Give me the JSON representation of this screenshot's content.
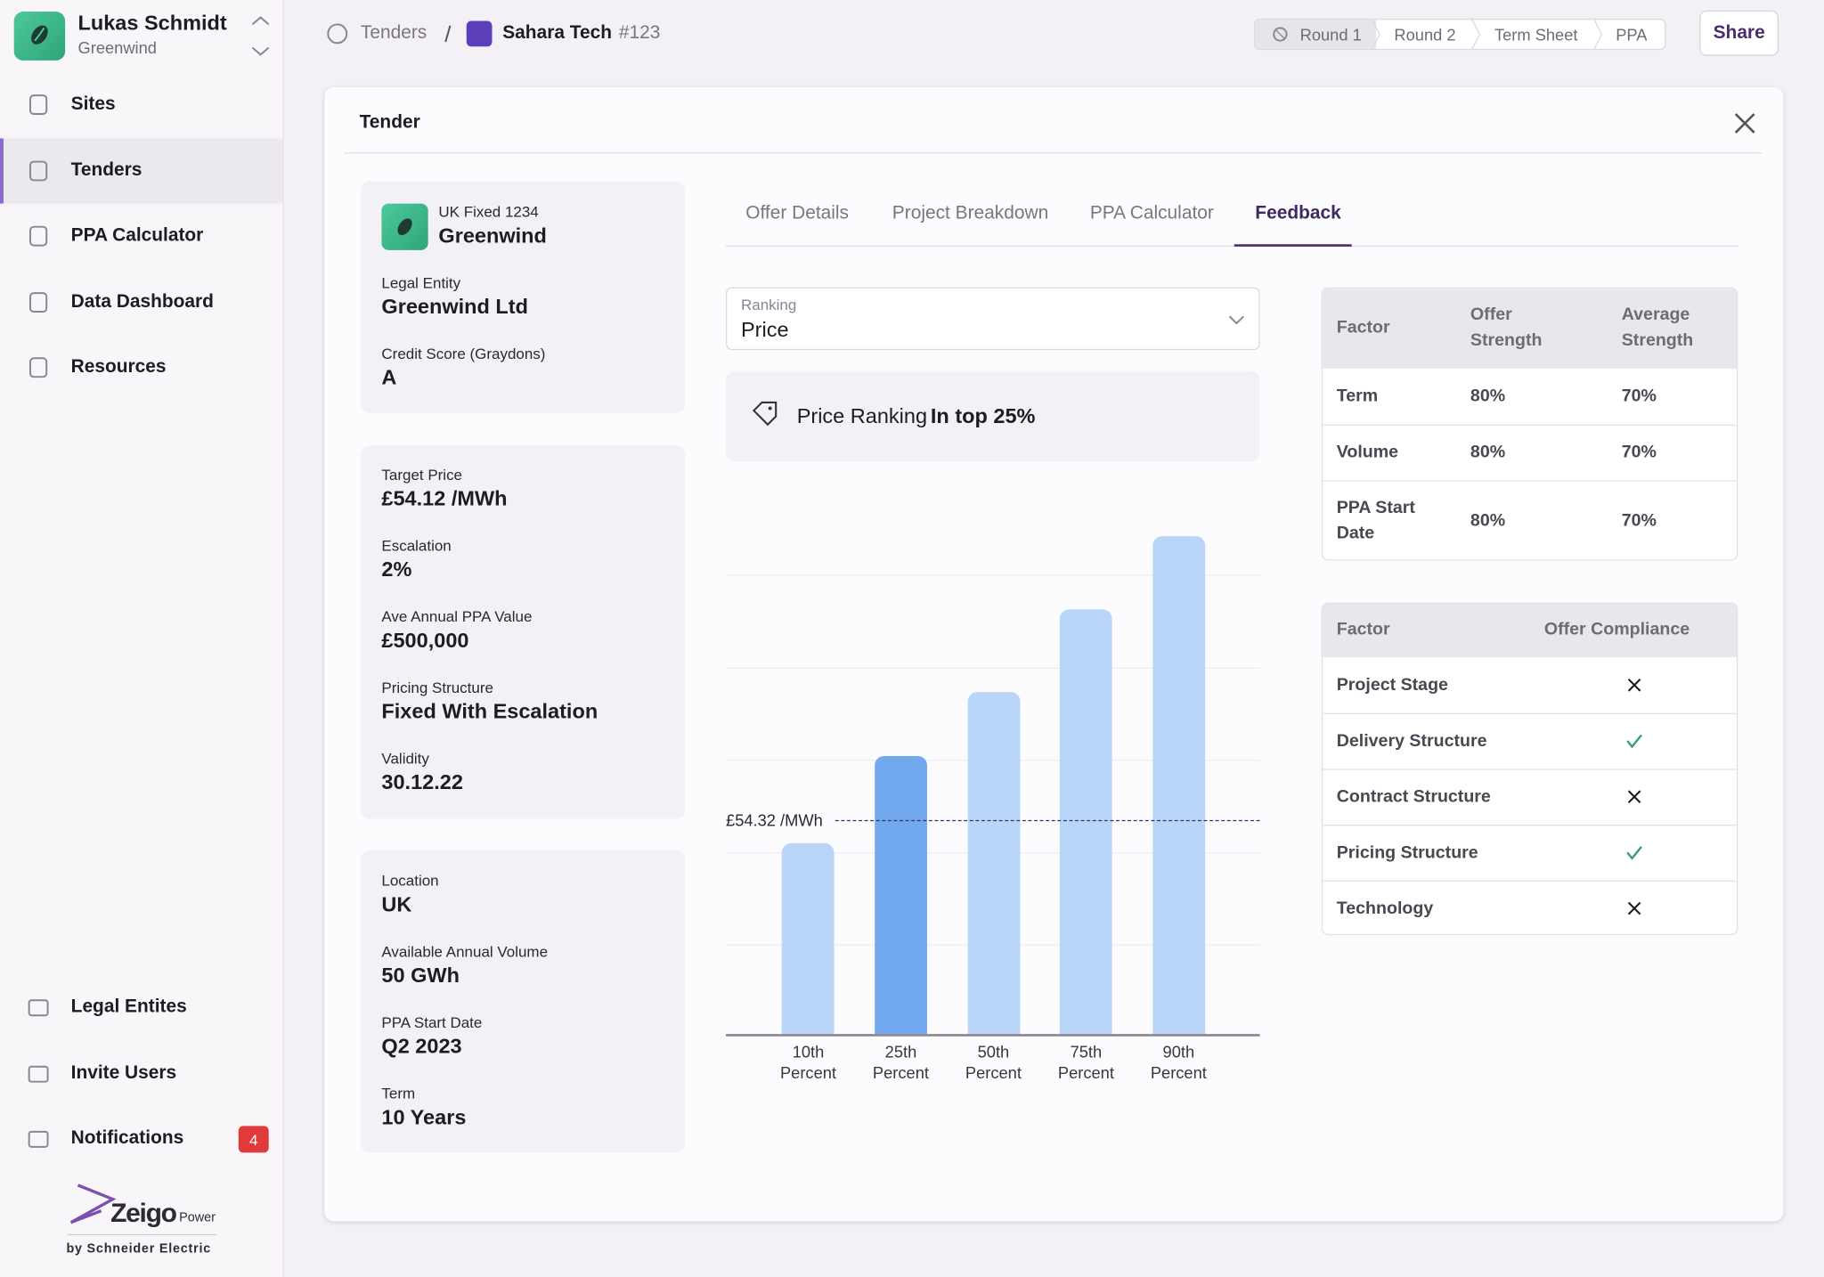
{
  "sidebar": {
    "user": {
      "name": "Lukas Schmidt",
      "org": "Greenwind"
    },
    "nav": [
      "Sites",
      "Tenders",
      "PPA Calculator",
      "Data Dashboard",
      "Resources"
    ],
    "active_nav": 1,
    "bottom_nav": [
      "Legal Entites",
      "Invite Users",
      "Notifications"
    ],
    "notification_count": 4,
    "brand": {
      "name": "Zeigo",
      "suffix": "Power",
      "byline": "by Schneider Electric"
    }
  },
  "header": {
    "breadcrumb": [
      "Tenders",
      "Sahara Tech"
    ],
    "id": "#123",
    "steps": [
      "Round 1",
      "Round 2",
      "Term Sheet",
      "PPA"
    ],
    "active_step": 0,
    "share": "Share"
  },
  "panel": {
    "title": "Tender",
    "offer": {
      "product": "UK Fixed 1234",
      "company": "Greenwind",
      "fields": [
        {
          "label": "Legal Entity",
          "value": "Greenwind Ltd"
        },
        {
          "label": "Credit Score (Graydons)",
          "value": "A"
        }
      ]
    },
    "pricing": [
      {
        "label": "Target Price",
        "value": "£54.12 /MWh"
      },
      {
        "label": "Escalation",
        "value": "2%"
      },
      {
        "label": "Ave Annual PPA Value",
        "value": "£500,000"
      },
      {
        "label": "Pricing Structure",
        "value": "Fixed With Escalation"
      },
      {
        "label": "Validity",
        "value": "30.12.22"
      }
    ],
    "project": [
      {
        "label": "Location",
        "value": "UK"
      },
      {
        "label": "Available Annual Volume",
        "value": "50 GWh"
      },
      {
        "label": "PPA Start Date",
        "value": "Q2 2023"
      },
      {
        "label": "Term",
        "value": "10 Years"
      }
    ],
    "tabs": [
      "Offer Details",
      "Project Breakdown",
      "PPA Calculator",
      "Feedback"
    ],
    "active_tab": 3,
    "ranking": {
      "label": "Ranking",
      "value": "Price"
    },
    "ranking_result": {
      "label": "Price Ranking",
      "value": "In top 25%"
    },
    "strength_table": {
      "columns": [
        "Factor",
        "Offer Strength",
        "Average Strength"
      ],
      "rows": [
        [
          "Term",
          "80%",
          "70%"
        ],
        [
          "Volume",
          "80%",
          "70%"
        ],
        [
          "PPA Start Date",
          "80%",
          "70%"
        ]
      ]
    },
    "compliance_table": {
      "columns": [
        "Factor",
        "Offer Compliance"
      ],
      "rows": [
        {
          "factor": "Project Stage",
          "compliant": false
        },
        {
          "factor": "Delivery Structure",
          "compliant": true
        },
        {
          "factor": "Contract Structure",
          "compliant": false
        },
        {
          "factor": "Pricing Structure",
          "compliant": true
        },
        {
          "factor": "Technology",
          "compliant": false
        }
      ]
    }
  },
  "chart_data": {
    "type": "bar",
    "categories": [
      "10th Percent",
      "25th Percent",
      "50th Percent",
      "75th Percent",
      "90th Percent"
    ],
    "values": [
      48.4,
      70.6,
      86.8,
      107.7,
      126.4
    ],
    "colors": [
      "#b9d5f8",
      "#72a9ee",
      "#b9d5f8",
      "#b9d5f8",
      "#b9d5f8"
    ],
    "ylim": [
      0,
      140
    ],
    "grid": true,
    "reference_line": {
      "value": 54.32,
      "label": "£54.32 /MWh"
    }
  }
}
